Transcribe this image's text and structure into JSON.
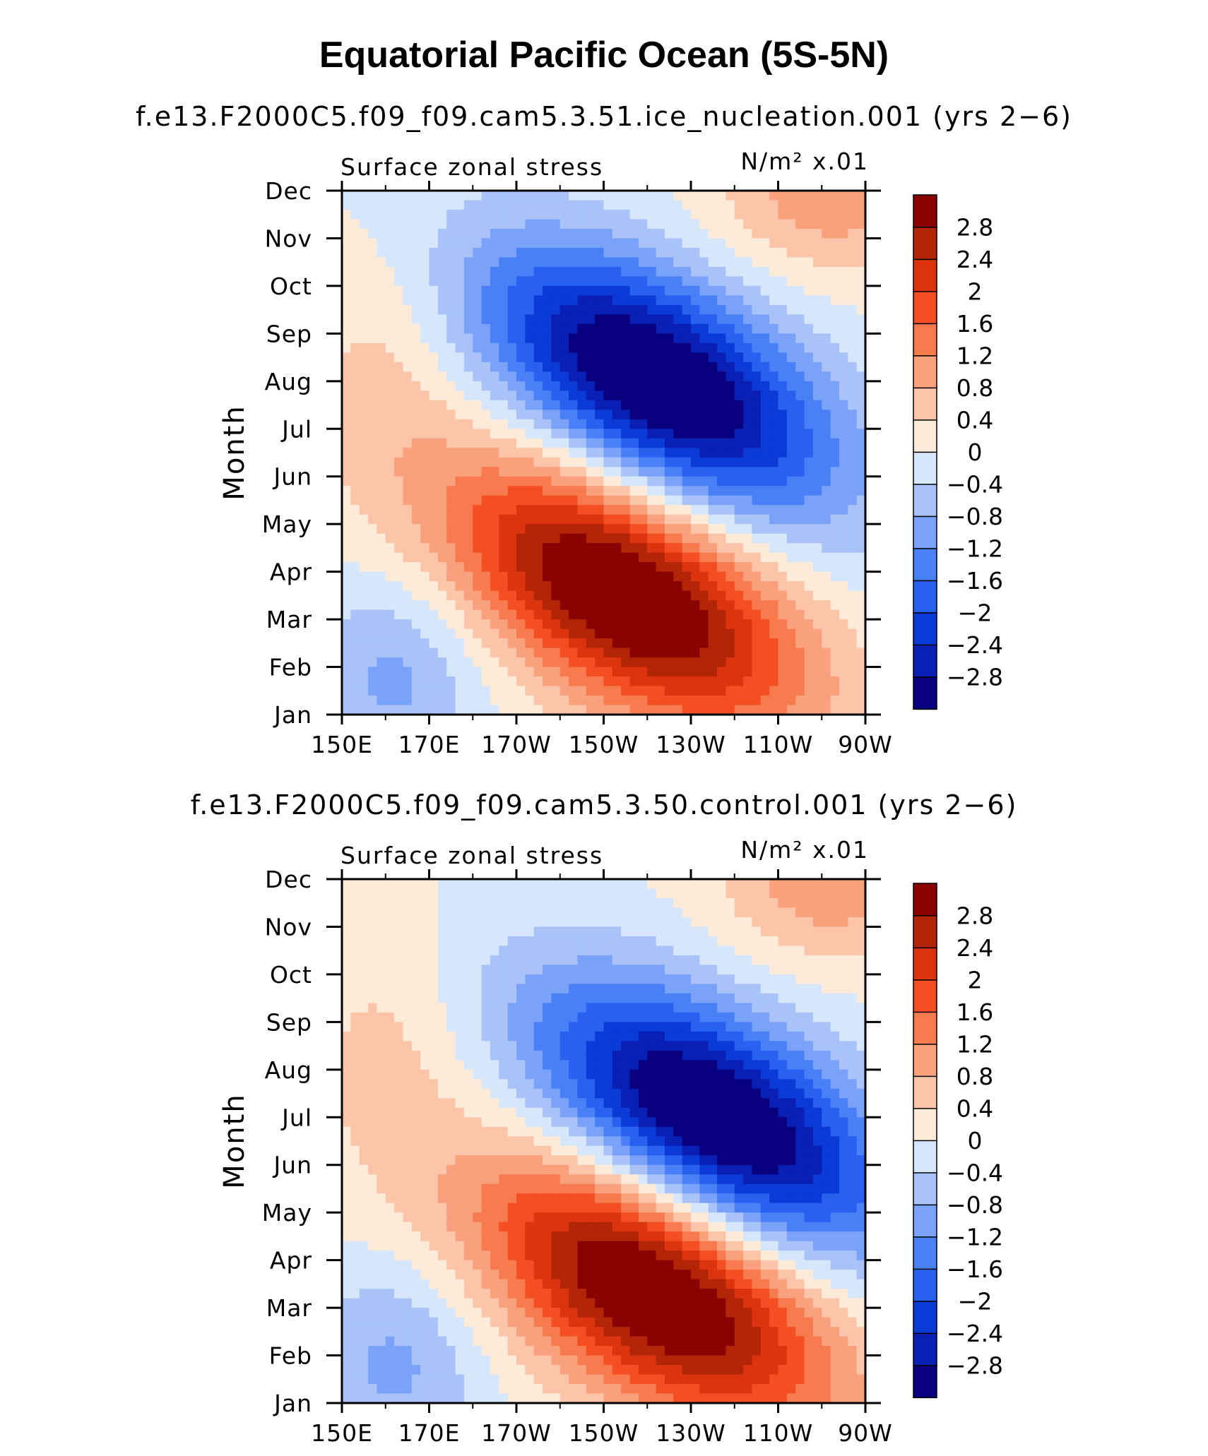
{
  "figure_title": "Equatorial Pacific Ocean (5S-5N)",
  "chart_data": [
    {
      "type": "heatmap",
      "title": "f.e13.F2000C5.f09_f09.cam5.3.51.ice_nucleation.001 (yrs 2−6)",
      "left_label": "Surface zonal stress",
      "right_label": "N/m² x.01",
      "xlabel": "",
      "ylabel": "Month",
      "x_ticks": [
        "150E",
        "170E",
        "170W",
        "150W",
        "130W",
        "110W",
        "90W"
      ],
      "y_ticks": [
        "Jan",
        "Feb",
        "Mar",
        "Apr",
        "May",
        "Jun",
        "Jul",
        "Aug",
        "Sep",
        "Oct",
        "Nov",
        "Dec"
      ],
      "x_range": [
        "150E",
        "90W"
      ],
      "contour_levels": [
        "2.8",
        "2.4",
        "2",
        "1.6",
        "1.2",
        "0.8",
        "0.4",
        "0",
        "−0.4",
        "−0.8",
        "−1.2",
        "−1.6",
        "−2",
        "−2.4",
        "−2.8"
      ],
      "features": [
        {
          "kind": "positive_max",
          "lon": 215,
          "month": 3.5,
          "value": 3.0
        },
        {
          "kind": "negative_min",
          "lon": 222,
          "month": 8.0,
          "value": -3.0
        },
        {
          "kind": "positive_ne",
          "lon": 262,
          "month": 12.0,
          "value": 0.9
        }
      ]
    },
    {
      "type": "heatmap",
      "title": "f.e13.F2000C5.f09_f09.cam5.3.50.control.001 (yrs 2−6)",
      "left_label": "Surface zonal stress",
      "right_label": "N/m² x.01",
      "xlabel": "",
      "ylabel": "Month",
      "x_ticks": [
        "150E",
        "170E",
        "170W",
        "150W",
        "130W",
        "110W",
        "90W"
      ],
      "y_ticks": [
        "Jan",
        "Feb",
        "Mar",
        "Apr",
        "May",
        "Jun",
        "Jul",
        "Aug",
        "Sep",
        "Oct",
        "Nov",
        "Dec"
      ],
      "x_range": [
        "150E",
        "90W"
      ],
      "contour_levels": [
        "2.8",
        "2.4",
        "2",
        "1.6",
        "1.2",
        "0.8",
        "0.4",
        "0",
        "−0.4",
        "−0.8",
        "−1.2",
        "−1.6",
        "−2",
        "−2.4",
        "−2.8"
      ],
      "features": [
        {
          "kind": "positive_max",
          "lon": 222,
          "month": 3.3,
          "value": 3.0
        },
        {
          "kind": "negative_min",
          "lon": 235,
          "month": 7.0,
          "value": -3.0
        },
        {
          "kind": "positive_ne",
          "lon": 262,
          "month": 12.0,
          "value": 0.9
        }
      ]
    }
  ],
  "colormap": [
    "#08007f",
    "#0a1fb4",
    "#0b3ad6",
    "#2860ef",
    "#4a80f7",
    "#7aa2f8",
    "#a9c3f8",
    "#d6e6fb",
    "#fdebd9",
    "#fcc5a9",
    "#f9a07c",
    "#f77b4e",
    "#f34f22",
    "#dd3410",
    "#b32507",
    "#8a0303"
  ]
}
